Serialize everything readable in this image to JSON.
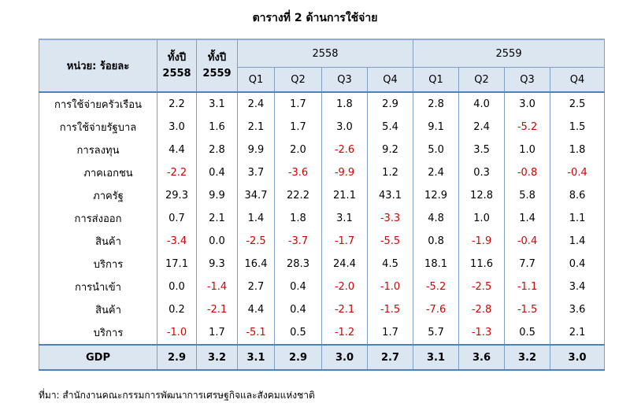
{
  "title": "ตารางที่ 2 ด้านการใช้จ่าย",
  "header": {
    "unit_label": "หน่วย: ร้อยละ",
    "full_year_label": "ทั้งปี",
    "years": [
      "2558",
      "2559"
    ],
    "group_years": [
      "2558",
      "2559"
    ],
    "quarters": [
      "Q1",
      "Q2",
      "Q3",
      "Q4"
    ]
  },
  "rows": [
    {
      "label": "การใช้จ่ายครัวเรือน",
      "indent": false,
      "values": [
        "2.2",
        "3.1",
        "2.4",
        "1.7",
        "1.8",
        "2.9",
        "2.8",
        "4.0",
        "3.0",
        "2.5"
      ]
    },
    {
      "label": "การใช้จ่ายรัฐบาล",
      "indent": false,
      "values": [
        "3.0",
        "1.6",
        "2.1",
        "1.7",
        "3.0",
        "5.4",
        "9.1",
        "2.4",
        "-5.2",
        "1.5"
      ]
    },
    {
      "label": "การลงทุน",
      "indent": false,
      "values": [
        "4.4",
        "2.8",
        "9.9",
        "2.0",
        "-2.6",
        "9.2",
        "5.0",
        "3.5",
        "1.0",
        "1.8"
      ]
    },
    {
      "label": "ภาคเอกชน",
      "indent": true,
      "values": [
        "-2.2",
        "0.4",
        "3.7",
        "-3.6",
        "-9.9",
        "1.2",
        "2.4",
        "0.3",
        "-0.8",
        "-0.4"
      ]
    },
    {
      "label": "ภาครัฐ",
      "indent": true,
      "values": [
        "29.3",
        "9.9",
        "34.7",
        "22.2",
        "21.1",
        "43.1",
        "12.9",
        "12.8",
        "5.8",
        "8.6"
      ]
    },
    {
      "label": "การส่งออก",
      "indent": false,
      "values": [
        "0.7",
        "2.1",
        "1.4",
        "1.8",
        "3.1",
        "-3.3",
        "4.8",
        "1.0",
        "1.4",
        "1.1"
      ]
    },
    {
      "label": "สินค้า",
      "indent": true,
      "values": [
        "-3.4",
        "0.0",
        "-2.5",
        "-3.7",
        "-1.7",
        "-5.5",
        "0.8",
        "-1.9",
        "-0.4",
        "1.4"
      ]
    },
    {
      "label": "บริการ",
      "indent": true,
      "values": [
        "17.1",
        "9.3",
        "16.4",
        "28.3",
        "24.4",
        "4.5",
        "18.1",
        "11.6",
        "7.7",
        "0.4"
      ]
    },
    {
      "label": "การนำเข้า",
      "indent": false,
      "values": [
        "0.0",
        "-1.4",
        "2.7",
        "0.4",
        "-2.0",
        "-1.0",
        "-5.2",
        "-2.5",
        "-1.1",
        "3.4"
      ]
    },
    {
      "label": "สินค้า",
      "indent": true,
      "values": [
        "0.2",
        "-2.1",
        "4.4",
        "0.4",
        "-2.1",
        "-1.5",
        "-7.6",
        "-2.8",
        "-1.5",
        "3.6"
      ]
    },
    {
      "label": "บริการ",
      "indent": true,
      "values": [
        "-1.0",
        "1.7",
        "-5.1",
        "0.5",
        "-1.2",
        "1.7",
        "5.7",
        "-1.3",
        "0.5",
        "2.1"
      ]
    }
  ],
  "gdp": {
    "label": "GDP",
    "values": [
      "2.9",
      "3.2",
      "3.1",
      "2.9",
      "3.0",
      "2.7",
      "3.1",
      "3.6",
      "3.2",
      "3.0"
    ]
  },
  "source": "ที่มา: สำนักงานคณะกรรมการพัฒนาการเศรษฐกิจและสังคมแห่งชาติ",
  "colors": {
    "negative": "#d60000",
    "header_bg": "#dce6f1",
    "border": "#4f81bd"
  }
}
